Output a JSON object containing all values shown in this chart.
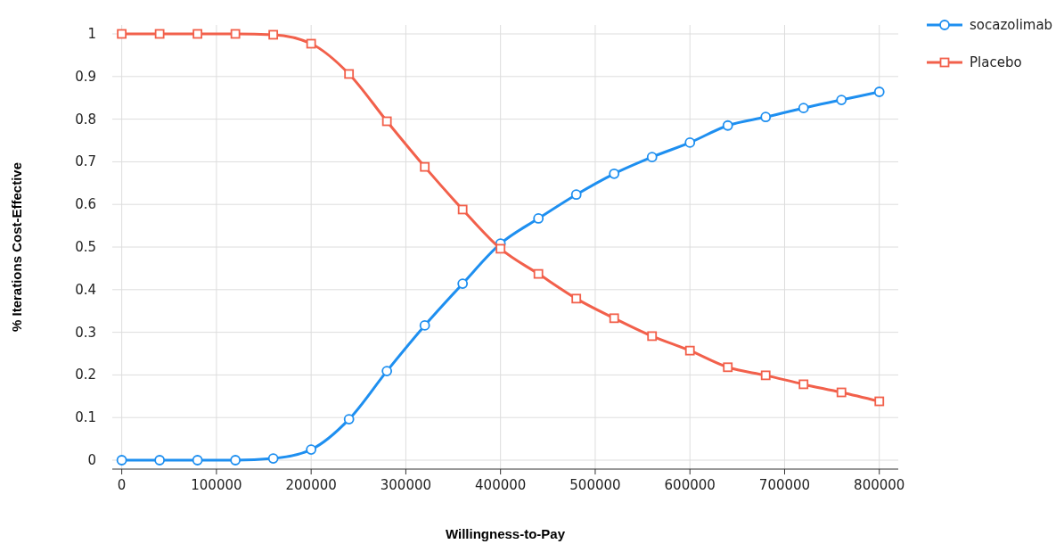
{
  "chart_data": {
    "type": "line",
    "xlabel": "Willingness-to-Pay",
    "ylabel": "% Iterations Cost-Effective",
    "x": [
      0,
      40000,
      80000,
      120000,
      160000,
      200000,
      240000,
      280000,
      320000,
      360000,
      400000,
      440000,
      480000,
      520000,
      560000,
      600000,
      640000,
      680000,
      720000,
      760000,
      800000
    ],
    "series": [
      {
        "name": "socazolimab",
        "color": "#1e8ff0",
        "marker": "circle",
        "values": [
          0,
          0,
          0,
          0,
          0.004,
          0.025,
          0.096,
          0.209,
          0.316,
          0.414,
          0.508,
          0.567,
          0.623,
          0.672,
          0.711,
          0.745,
          0.785,
          0.805,
          0.826,
          0.845,
          0.864
        ]
      },
      {
        "name": "Placebo",
        "color": "#f2604b",
        "marker": "square",
        "values": [
          1,
          1,
          1,
          1,
          0.998,
          0.977,
          0.906,
          0.795,
          0.688,
          0.588,
          0.496,
          0.437,
          0.379,
          0.333,
          0.291,
          0.257,
          0.218,
          0.199,
          0.178,
          0.159,
          0.138
        ]
      }
    ],
    "xlim": [
      -10000,
      820000
    ],
    "xticks": [
      0,
      100000,
      200000,
      300000,
      400000,
      500000,
      600000,
      700000,
      800000
    ],
    "ylim": [
      0,
      1
    ],
    "yticks": [
      0,
      0.1,
      0.2,
      0.3,
      0.4,
      0.5,
      0.6,
      0.7,
      0.8,
      0.9,
      1
    ],
    "grid": true,
    "legend": "top right",
    "line_style": "solid"
  }
}
